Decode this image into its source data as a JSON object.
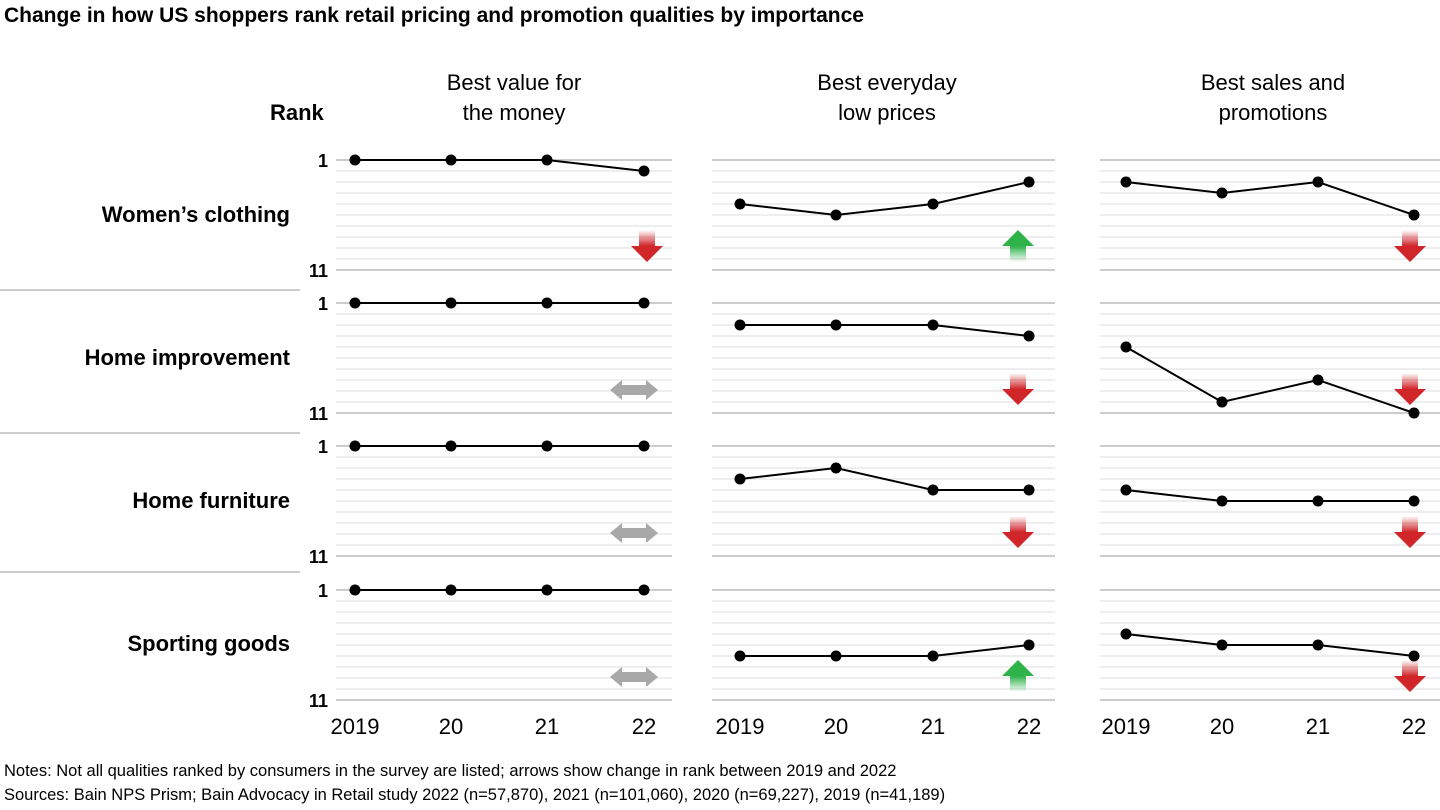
{
  "title": "Change in how US shoppers rank retail pricing and promotion qualities by importance",
  "notes": "Notes: Not all qualities ranked by consumers in the survey are listed; arrows show change in rank between 2019 and 2022",
  "sources": "Sources: Bain NPS Prism; Bain Advocacy in Retail study 2022 (n=57,870), 2021 (n=101,060), 2020 (n=69,227), 2019 (n=41,189)",
  "chart_data": {
    "type": "line",
    "title": "Change in how US shoppers rank retail pricing and promotion qualities by importance",
    "ylabel": "Rank",
    "ylim": [
      1,
      11
    ],
    "y_ticks": [
      "1",
      "11"
    ],
    "x": [
      "2019",
      "20",
      "21",
      "22"
    ],
    "columns": [
      "Best value for the money",
      "Best everyday low prices",
      "Best sales and promotions"
    ],
    "rows": [
      "Women’s clothing",
      "Home improvement",
      "Home furniture",
      "Sporting goods"
    ],
    "colors": {
      "up": "#2db34a",
      "down": "#d0262a",
      "flat": "#a8a8a8",
      "line": "#000000",
      "grid": "#e8e8e8"
    },
    "series": [
      {
        "row": "Women’s clothing",
        "column": "Best value for the money",
        "values": [
          1,
          1,
          1,
          2
        ],
        "trend": "down"
      },
      {
        "row": "Women’s clothing",
        "column": "Best everyday low prices",
        "values": [
          5,
          6,
          5,
          3
        ],
        "trend": "up"
      },
      {
        "row": "Women’s clothing",
        "column": "Best sales and promotions",
        "values": [
          3,
          4,
          3,
          6
        ],
        "trend": "down"
      },
      {
        "row": "Home improvement",
        "column": "Best value for the money",
        "values": [
          1,
          1,
          1,
          1
        ],
        "trend": "flat"
      },
      {
        "row": "Home improvement",
        "column": "Best everyday low prices",
        "values": [
          3,
          3,
          3,
          4
        ],
        "trend": "down"
      },
      {
        "row": "Home improvement",
        "column": "Best sales and promotions",
        "values": [
          5,
          10,
          8,
          11
        ],
        "trend": "down"
      },
      {
        "row": "Home furniture",
        "column": "Best value for the money",
        "values": [
          1,
          1,
          1,
          1
        ],
        "trend": "flat"
      },
      {
        "row": "Home furniture",
        "column": "Best everyday low prices",
        "values": [
          4,
          3,
          5,
          5
        ],
        "trend": "down"
      },
      {
        "row": "Home furniture",
        "column": "Best sales and promotions",
        "values": [
          5,
          6,
          6,
          6
        ],
        "trend": "down"
      },
      {
        "row": "Sporting goods",
        "column": "Best value for the money",
        "values": [
          1,
          1,
          1,
          1
        ],
        "trend": "flat"
      },
      {
        "row": "Sporting goods",
        "column": "Best everyday low prices",
        "values": [
          7,
          7,
          7,
          6
        ],
        "trend": "up"
      },
      {
        "row": "Sporting goods",
        "column": "Best sales and promotions",
        "values": [
          5,
          6,
          6,
          7
        ],
        "trend": "down"
      }
    ]
  },
  "col_heads": [
    [
      "Best value for",
      "the money"
    ],
    [
      "Best everyday",
      "low prices"
    ],
    [
      "Best sales and",
      "promotions"
    ]
  ]
}
